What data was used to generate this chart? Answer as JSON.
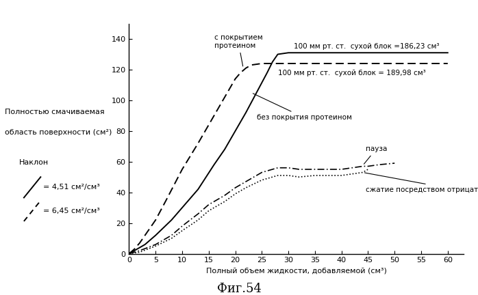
{
  "title": "Фиг.54",
  "xlabel": "Полный объем жидкости, добавляемой (см³)",
  "ylabel_line1": "Полностью смачиваемая",
  "ylabel_line2": "область поверхности (см²)",
  "xlim": [
    0,
    63
  ],
  "ylim": [
    0,
    150
  ],
  "xticks": [
    0,
    5,
    10,
    15,
    20,
    25,
    30,
    35,
    40,
    45,
    50,
    55,
    60
  ],
  "yticks": [
    0,
    20,
    40,
    60,
    80,
    100,
    120,
    140
  ],
  "background_color": "#ffffff",
  "line_color": "#000000",
  "slope_label": "Наклон",
  "slope1_text": "= 4,51 см²/см³",
  "slope2_text": "= 6,45 см²/см³",
  "annotation_protein": "с покрытием\nпротеином",
  "annotation_no_protein": "без покрытия протеином",
  "annotation_pause": "пауза",
  "annotation_compression": "сжатие посредством отрицательного давления",
  "annotation_100mmhg_solid": "100 мм рт. ст.  сухой блок =186,23 см³",
  "annotation_100mmhg_dash": "100 мм рт. ст.  сухой блок = 189,98 см³",
  "solid_line": {
    "x": [
      0,
      1,
      3,
      5,
      8,
      10,
      13,
      16,
      18,
      20,
      22,
      24,
      26,
      27,
      28,
      30,
      35,
      40,
      45,
      50,
      55,
      60
    ],
    "y": [
      0,
      2,
      6,
      12,
      22,
      30,
      42,
      58,
      68,
      80,
      92,
      105,
      118,
      125,
      130,
      131,
      131,
      131,
      131,
      131,
      131,
      131
    ]
  },
  "dashed_line": {
    "x": [
      0,
      1,
      2,
      3,
      5,
      7,
      10,
      13,
      15,
      17,
      19,
      20,
      21,
      22,
      23,
      25,
      28,
      30,
      35,
      40,
      45,
      50,
      55,
      60
    ],
    "y": [
      0,
      3,
      7,
      12,
      22,
      35,
      55,
      72,
      84,
      96,
      108,
      114,
      118,
      121,
      123,
      124,
      124,
      124,
      124,
      124,
      124,
      124,
      124,
      124
    ]
  },
  "dashdot_line": {
    "x": [
      0,
      2,
      5,
      8,
      10,
      13,
      15,
      18,
      20,
      22,
      25,
      27,
      28,
      30,
      32,
      35,
      37,
      40,
      42,
      44,
      45,
      47,
      50
    ],
    "y": [
      0,
      2,
      6,
      12,
      18,
      26,
      32,
      38,
      43,
      47,
      53,
      55,
      56,
      56,
      55,
      55,
      55,
      55,
      56,
      57,
      57,
      58,
      59
    ]
  },
  "dotted_line": {
    "x": [
      0,
      2,
      5,
      8,
      10,
      13,
      15,
      18,
      20,
      22,
      25,
      27,
      28,
      30,
      32,
      35,
      37,
      40,
      42,
      44,
      45
    ],
    "y": [
      0,
      1,
      5,
      10,
      15,
      22,
      28,
      34,
      39,
      43,
      48,
      50,
      51,
      51,
      50,
      51,
      51,
      51,
      52,
      53,
      55
    ]
  }
}
